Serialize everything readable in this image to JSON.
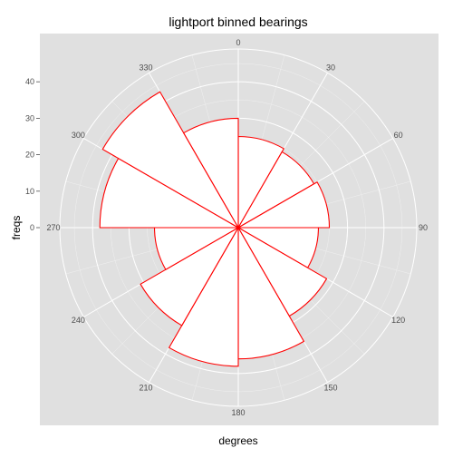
{
  "chart_data": {
    "type": "bar",
    "coordinate_system": "polar",
    "title": "lightport binned bearings",
    "xlabel": "degrees",
    "ylabel": "freqs",
    "angle_ticks": [
      "0",
      "30",
      "60",
      "90",
      "120",
      "150",
      "180",
      "210",
      "240",
      "270",
      "300",
      "330"
    ],
    "radial_ticks": [
      "0",
      "10",
      "20",
      "30",
      "40"
    ],
    "rlim": [
      0,
      49
    ],
    "categories": [
      0,
      30,
      60,
      90,
      120,
      150,
      180,
      210,
      240,
      270,
      300,
      330
    ],
    "bin_width_degrees": 30,
    "values": [
      25,
      24,
      25,
      22,
      28,
      36,
      38,
      31,
      23,
      38,
      43,
      30
    ],
    "fill_color": "#ffffff",
    "stroke_color": "#ff0000",
    "panel_color": "#e0e0e0",
    "grid_color": "#ffffff",
    "grid": true,
    "legend": "none"
  }
}
